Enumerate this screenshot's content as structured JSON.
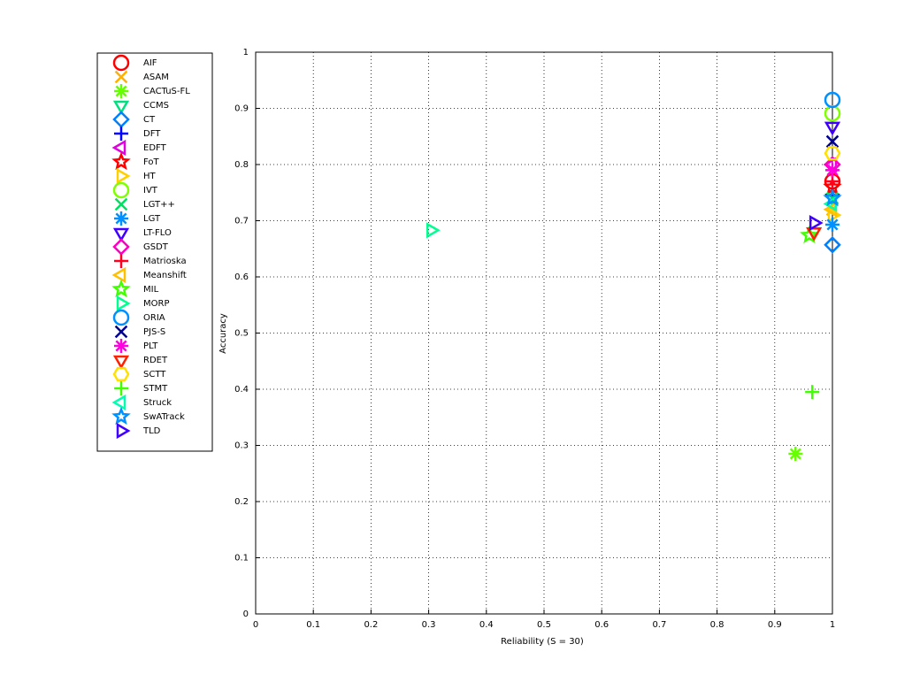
{
  "chart_data": {
    "type": "scatter",
    "xlabel": "Reliability (S = 30)",
    "ylabel": "Accuracy",
    "xlim": [
      0,
      1
    ],
    "ylim": [
      0,
      1
    ],
    "xticks": [
      0,
      0.1,
      0.2,
      0.3,
      0.4,
      0.5,
      0.6,
      0.7,
      0.8,
      0.9,
      1
    ],
    "yticks": [
      0,
      0.1,
      0.2,
      0.3,
      0.4,
      0.5,
      0.6,
      0.7,
      0.8,
      0.9,
      1
    ],
    "grid": true,
    "legend": "outside-left",
    "series": [
      {
        "name": "AIF",
        "color": "#ff0000",
        "marker": "o",
        "x": [
          1
        ],
        "y": [
          0.77
        ]
      },
      {
        "name": "ASAM",
        "color": "#ffb000",
        "marker": "x",
        "x": [
          1
        ],
        "y": [
          0.72
        ]
      },
      {
        "name": "CACTuS-FL",
        "color": "#66ff00",
        "marker": "*",
        "x": [
          0.936
        ],
        "y": [
          0.285
        ]
      },
      {
        "name": "CCMS",
        "color": "#00e080",
        "marker": "v",
        "x": [
          1
        ],
        "y": [
          0.74
        ]
      },
      {
        "name": "CT",
        "color": "#0080ff",
        "marker": "d",
        "x": [
          1
        ],
        "y": [
          0.657
        ]
      },
      {
        "name": "DFT",
        "color": "#0000ff",
        "marker": "+",
        "x": [
          1
        ],
        "y": [
          0.746
        ]
      },
      {
        "name": "EDFT",
        "color": "#e000e0",
        "marker": "<",
        "x": [
          1
        ],
        "y": [
          0.8
        ]
      },
      {
        "name": "FoT",
        "color": "#ff0000",
        "marker": "p",
        "x": [
          1
        ],
        "y": [
          0.76
        ]
      },
      {
        "name": "HT",
        "color": "#ffd000",
        "marker": ">",
        "x": [
          1
        ],
        "y": [
          0.71
        ]
      },
      {
        "name": "IVT",
        "color": "#80ff00",
        "marker": "o",
        "x": [
          1
        ],
        "y": [
          0.891
        ]
      },
      {
        "name": "LGT++",
        "color": "#00e060",
        "marker": "x",
        "x": [
          1
        ],
        "y": [
          0.74
        ]
      },
      {
        "name": "LGT",
        "color": "#0090ff",
        "marker": "*",
        "x": [
          1
        ],
        "y": [
          0.693
        ]
      },
      {
        "name": "LT-FLO",
        "color": "#4000ff",
        "marker": "v",
        "x": [
          1
        ],
        "y": [
          0.868
        ]
      },
      {
        "name": "GSDT",
        "color": "#ff00c0",
        "marker": "d",
        "x": [
          1
        ],
        "y": [
          0.8
        ]
      },
      {
        "name": "Matrioska",
        "color": "#ff0020",
        "marker": "+",
        "x": [
          1
        ],
        "y": [
          0.77
        ]
      },
      {
        "name": "Meanshift",
        "color": "#ffc000",
        "marker": "<",
        "x": [
          1
        ],
        "y": [
          0.72
        ]
      },
      {
        "name": "MIL",
        "color": "#40ff00",
        "marker": "p",
        "x": [
          0.96
        ],
        "y": [
          0.674
        ]
      },
      {
        "name": "MORP",
        "color": "#00ff90",
        "marker": ">",
        "x": [
          0.304
        ],
        "y": [
          0.683
        ]
      },
      {
        "name": "ORIA",
        "color": "#0090ff",
        "marker": "o",
        "x": [
          1
        ],
        "y": [
          0.915
        ]
      },
      {
        "name": "PJS-S",
        "color": "#000090",
        "marker": "x",
        "x": [
          1
        ],
        "y": [
          0.841
        ]
      },
      {
        "name": "PLT",
        "color": "#ff00e0",
        "marker": "*",
        "x": [
          1
        ],
        "y": [
          0.79
        ]
      },
      {
        "name": "RDET",
        "color": "#ff2000",
        "marker": "v",
        "x": [
          0.968
        ],
        "y": [
          0.68
        ]
      },
      {
        "name": "SCTT",
        "color": "#ffe000",
        "marker": "h",
        "x": [
          1
        ],
        "y": [
          0.82
        ]
      },
      {
        "name": "STMT",
        "color": "#40ff00",
        "marker": "+",
        "x": [
          0.965
        ],
        "y": [
          0.395
        ]
      },
      {
        "name": "Struck",
        "color": "#00ffb0",
        "marker": "<",
        "x": [
          1
        ],
        "y": [
          0.73
        ]
      },
      {
        "name": "SwATrack",
        "color": "#0090ff",
        "marker": "p",
        "x": [
          1
        ],
        "y": [
          0.74
        ]
      },
      {
        "name": "TLD",
        "color": "#4000ff",
        "marker": ">",
        "x": [
          0.968
        ],
        "y": [
          0.696
        ]
      }
    ]
  }
}
